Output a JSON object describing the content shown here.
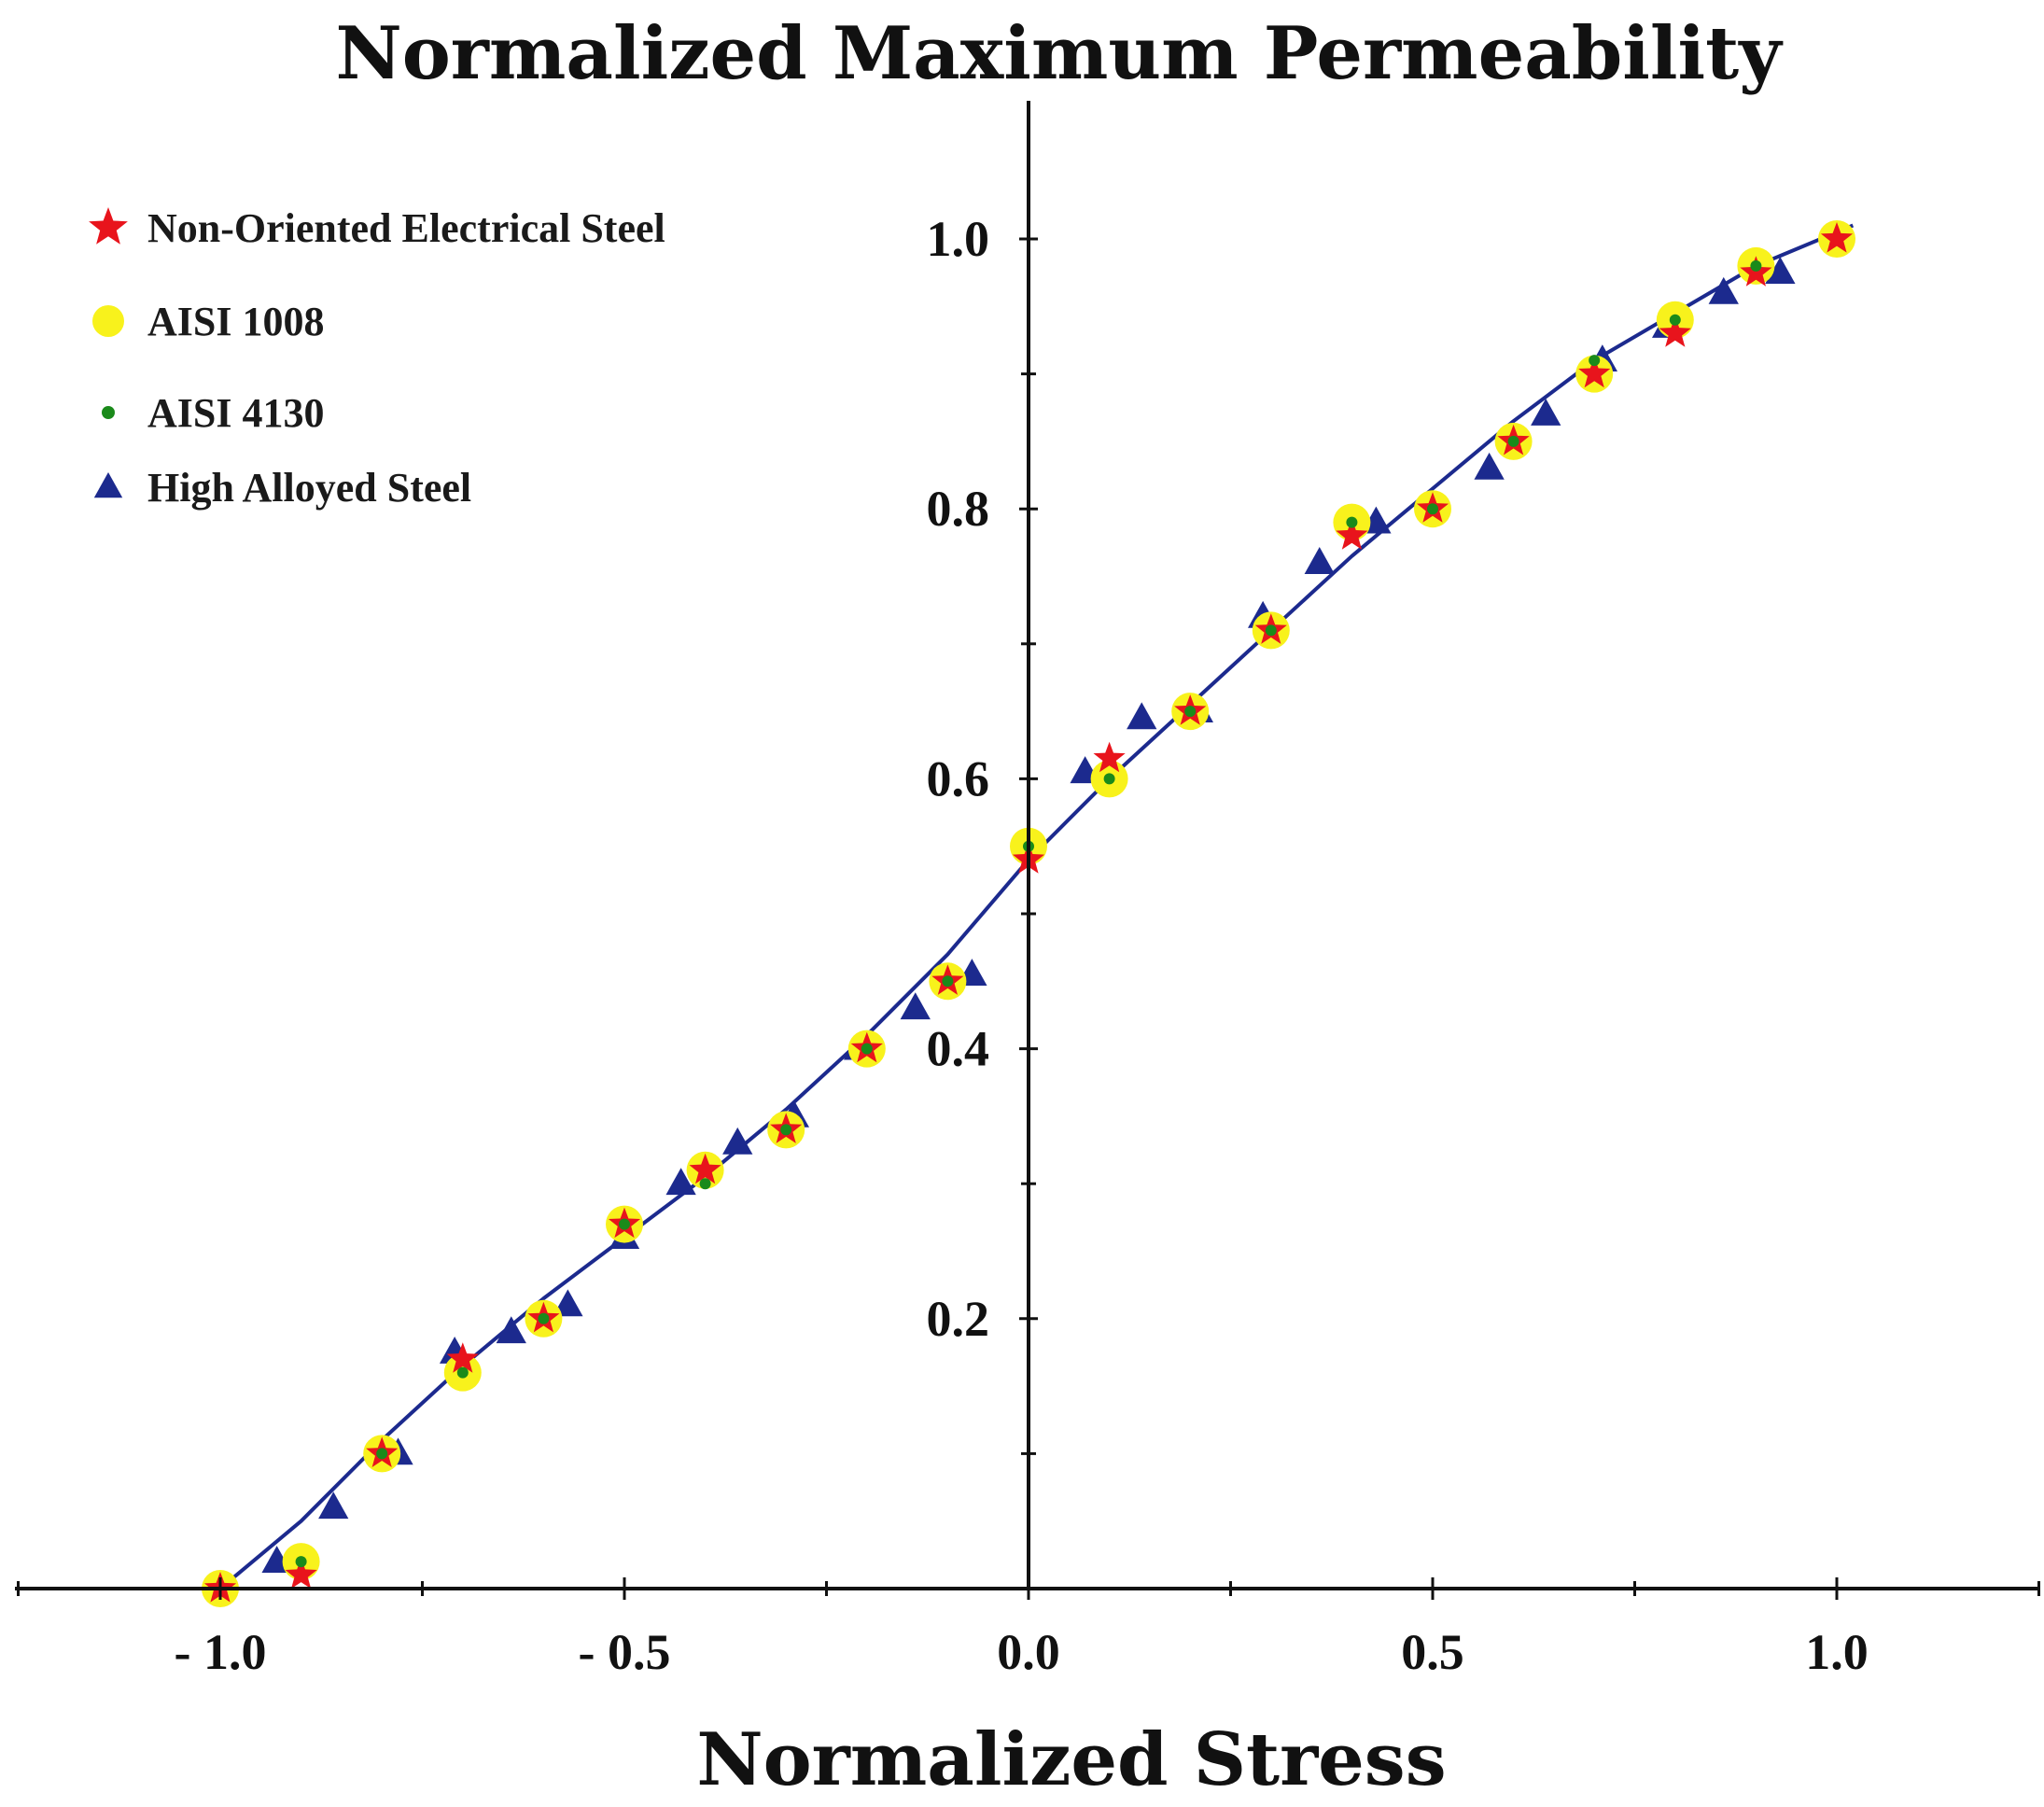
{
  "chart_data": {
    "type": "scatter",
    "title": "Normalized Maximum Permeability",
    "xlabel": "Normalized Stress",
    "ylabel": "",
    "xlim": [
      -1.25,
      1.25
    ],
    "ylim": [
      0.0,
      1.1
    ],
    "x_ticks": [
      {
        "value": -1.0,
        "label": "- 1.0"
      },
      {
        "value": -0.5,
        "label": "- 0.5"
      },
      {
        "value": 0.0,
        "label": "0.0"
      },
      {
        "value": 0.5,
        "label": "0.5"
      },
      {
        "value": 1.0,
        "label": "1.0"
      }
    ],
    "y_ticks": [
      {
        "value": 0.2,
        "label": "0.2"
      },
      {
        "value": 0.4,
        "label": "0.4"
      },
      {
        "value": 0.6,
        "label": "0.6"
      },
      {
        "value": 0.8,
        "label": "0.8"
      },
      {
        "value": 1.0,
        "label": "1.0"
      }
    ],
    "legend_position": "top-left",
    "series": [
      {
        "name": "Non-Oriented Electrical Steel",
        "marker": "star",
        "color": "#e8141c",
        "x": [
          -1.0,
          -0.9,
          -0.8,
          -0.7,
          -0.6,
          -0.5,
          -0.4,
          -0.3,
          -0.2,
          -0.1,
          0.0,
          0.1,
          0.2,
          0.3,
          0.4,
          0.5,
          0.6,
          0.7,
          0.8,
          0.9,
          1.0
        ],
        "y": [
          0.0,
          0.01,
          0.1,
          0.17,
          0.2,
          0.27,
          0.31,
          0.34,
          0.4,
          0.45,
          0.54,
          0.615,
          0.65,
          0.71,
          0.78,
          0.8,
          0.85,
          0.9,
          0.93,
          0.975,
          1.0
        ]
      },
      {
        "name": "AISI 1008",
        "marker": "circle",
        "color": "#f8f21c",
        "x": [
          -1.0,
          -0.9,
          -0.8,
          -0.7,
          -0.6,
          -0.5,
          -0.4,
          -0.3,
          -0.2,
          -0.1,
          0.0,
          0.1,
          0.2,
          0.3,
          0.4,
          0.5,
          0.6,
          0.7,
          0.8,
          0.9,
          1.0
        ],
        "y": [
          0.0,
          0.02,
          0.1,
          0.16,
          0.2,
          0.27,
          0.31,
          0.34,
          0.4,
          0.45,
          0.55,
          0.6,
          0.65,
          0.71,
          0.79,
          0.8,
          0.85,
          0.9,
          0.94,
          0.98,
          1.0
        ]
      },
      {
        "name": "AISI 4130",
        "marker": "dot",
        "color": "#1a8a1a",
        "x": [
          -0.9,
          -0.8,
          -0.7,
          -0.6,
          -0.5,
          -0.4,
          -0.3,
          -0.2,
          -0.1,
          0.0,
          0.1,
          0.2,
          0.3,
          0.4,
          0.5,
          0.6,
          0.7,
          0.8,
          0.9
        ],
        "y": [
          0.02,
          0.1,
          0.16,
          0.2,
          0.27,
          0.3,
          0.34,
          0.4,
          0.45,
          0.55,
          0.6,
          0.65,
          0.71,
          0.79,
          0.8,
          0.85,
          0.91,
          0.94,
          0.98
        ]
      },
      {
        "name": "High Alloyed Steel",
        "marker": "triangle",
        "color": "#1c2a8e",
        "x": [
          -0.93,
          -0.86,
          -0.78,
          -0.71,
          -0.64,
          -0.57,
          -0.5,
          -0.43,
          -0.36,
          -0.29,
          -0.21,
          -0.14,
          -0.07,
          0.07,
          0.14,
          0.21,
          0.29,
          0.36,
          0.43,
          0.5,
          0.57,
          0.64,
          0.71,
          0.79,
          0.86,
          0.93
        ],
        "y": [
          0.02,
          0.06,
          0.1,
          0.175,
          0.19,
          0.21,
          0.26,
          0.3,
          0.33,
          0.35,
          0.4,
          0.43,
          0.455,
          0.605,
          0.645,
          0.65,
          0.72,
          0.76,
          0.79,
          0.8,
          0.83,
          0.87,
          0.91,
          0.935,
          0.96,
          0.975
        ]
      }
    ],
    "fit_line": {
      "name": "fit",
      "color": "#1c2a8e",
      "x": [
        -1.0,
        -0.9,
        -0.8,
        -0.7,
        -0.6,
        -0.5,
        -0.4,
        -0.3,
        -0.2,
        -0.1,
        0.0,
        0.1,
        0.2,
        0.3,
        0.4,
        0.5,
        0.6,
        0.7,
        0.8,
        0.9,
        1.0,
        1.02
      ],
      "y": [
        0.0,
        0.05,
        0.11,
        0.165,
        0.215,
        0.26,
        0.305,
        0.355,
        0.41,
        0.47,
        0.54,
        0.6,
        0.655,
        0.71,
        0.765,
        0.815,
        0.865,
        0.91,
        0.945,
        0.98,
        1.005,
        1.01
      ]
    }
  }
}
